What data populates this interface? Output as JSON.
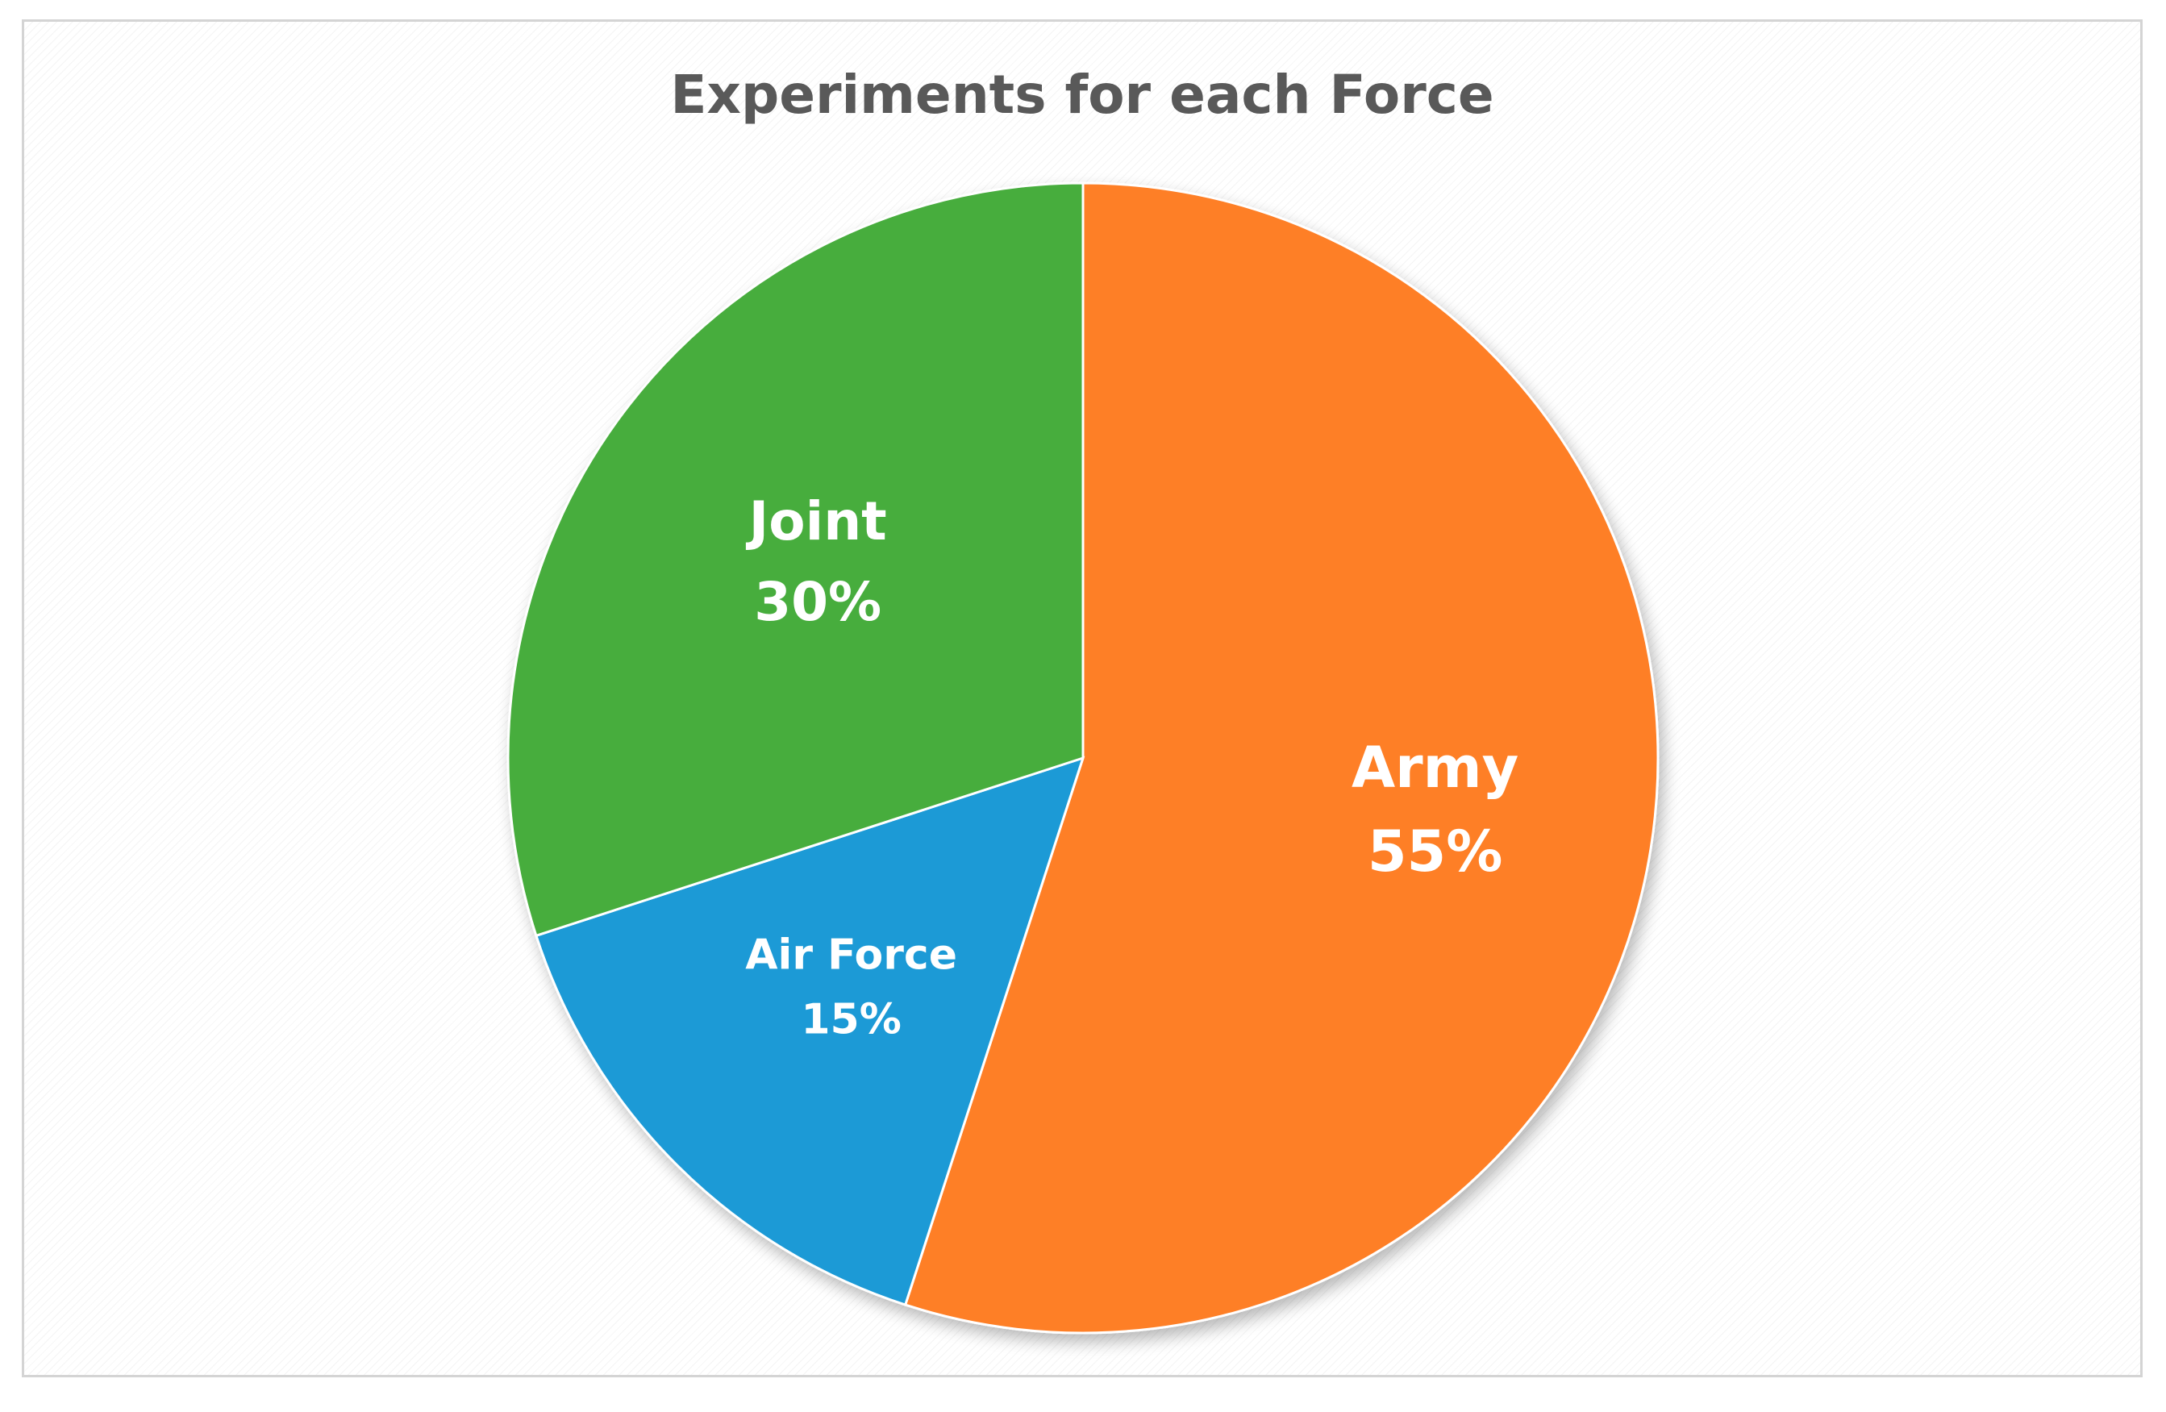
{
  "chart_data": {
    "type": "pie",
    "title": "Experiments for each Force",
    "categories": [
      "Army",
      "Air Force",
      "Joint"
    ],
    "values": [
      55,
      15,
      30
    ],
    "labels": [
      "55%",
      "15%",
      "30%"
    ],
    "colors": [
      "#FE7F27",
      "#1A9AD6",
      "#47AD3D"
    ],
    "start_angle_deg": 0,
    "direction": "clockwise",
    "legend": "none"
  }
}
